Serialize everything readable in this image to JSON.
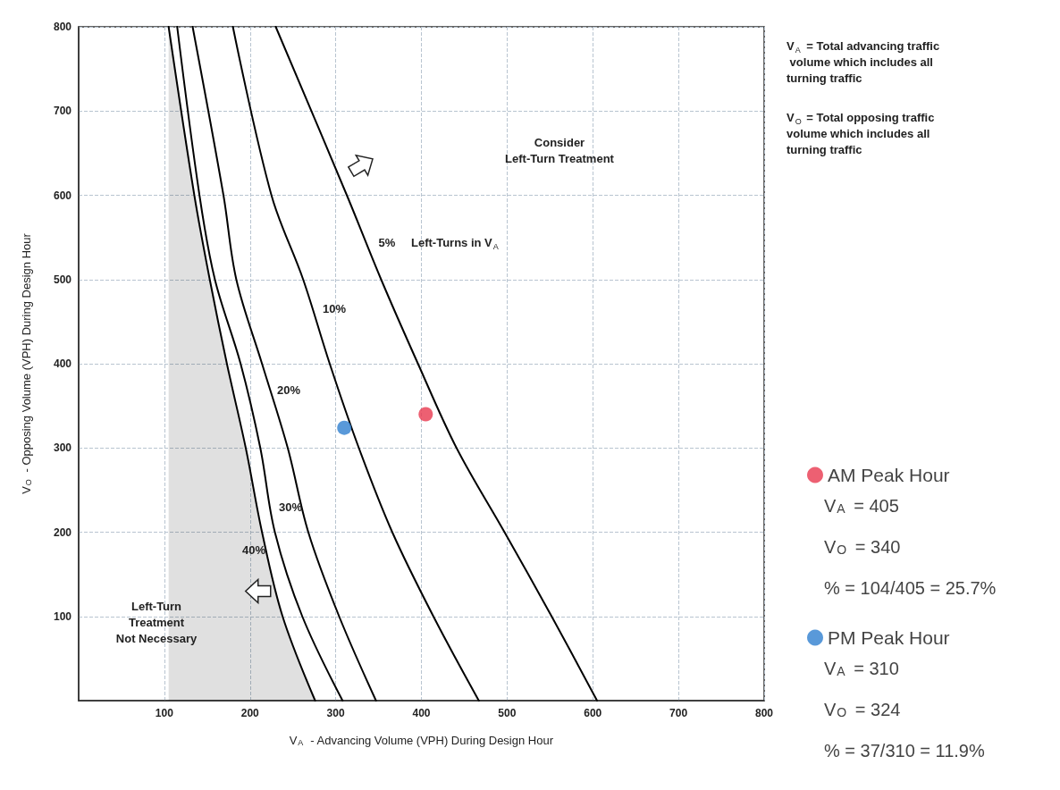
{
  "chart_data": {
    "type": "line",
    "xlabel": "V$_{A}$ - Advancing Volume (VPH) During Design Hour",
    "ylabel": "V$_{O}$ - Opposing Volume (VPH) During Design Hour",
    "xlim": [
      0,
      800
    ],
    "xticks": [
      100,
      200,
      300,
      400,
      500,
      600,
      700,
      800
    ],
    "ylim": [
      0,
      800
    ],
    "yticks": [
      100,
      200,
      300,
      400,
      500,
      600,
      700,
      800
    ],
    "grid": true,
    "legend": "right",
    "marker": "none",
    "line_style": "solid",
    "series": [
      {
        "type": "area",
        "color": "#000000",
        "x": [
          105,
          135,
          153,
          173,
          195,
          214,
          238,
          276
        ],
        "values": [
          800,
          600,
          500,
          400,
          300,
          200,
          100,
          0
        ]
      },
      {
        "color": "#000000",
        "x": [
          115,
          141,
          159,
          189,
          212,
          229,
          261,
          308
        ],
        "values": [
          800,
          600,
          500,
          400,
          300,
          200,
          100,
          0
        ]
      },
      {
        "color": "#000000",
        "x": [
          133,
          169,
          184,
          214,
          244,
          268,
          304,
          347
        ],
        "values": [
          800,
          600,
          500,
          400,
          300,
          200,
          100,
          0
        ]
      },
      {
        "color": "#000000",
        "x": [
          180,
          225,
          262,
          293,
          327,
          366,
          414,
          467
        ],
        "values": [
          800,
          600,
          500,
          400,
          300,
          200,
          100,
          0
        ]
      },
      {
        "color": "#000000",
        "x": [
          230,
          313,
          353,
          396,
          441,
          497,
          552,
          605
        ],
        "values": [
          800,
          600,
          500,
          400,
          300,
          200,
          100,
          0
        ]
      },
      {
        "type": "scatter",
        "name": "AM Peak Hour",
        "color": "#e8384f",
        "marker": "circle",
        "x": [
          405
        ],
        "values": [
          340
        ]
      },
      {
        "type": "scatter",
        "name": "PM Peak Hour",
        "color": "#2f80d0",
        "marker": "circle",
        "x": [
          310
        ],
        "values": [
          324
        ]
      }
    ],
    "annotations": [
      "V$_{A}$ = Total advancing traffic volume which includes all turning traffic",
      "V$_{O}$ = Total opposing traffic volume which includes all turning traffic",
      "V$_{A}$ = 405",
      "V$_{O}$ = 340",
      "% = 104/405 = 25.7%",
      "V$_{A}$ = 310",
      "V$_{O}$ = 324",
      "% = 37/310 = 11.9%",
      "Left-Turns in V$_{A}$",
      "Consider\nLeft-Turn Treatment",
      "Left-Turn\nTreatment\nNot Necessary",
      "5%",
      "10%",
      "20%",
      "30%",
      "40%"
    ]
  }
}
